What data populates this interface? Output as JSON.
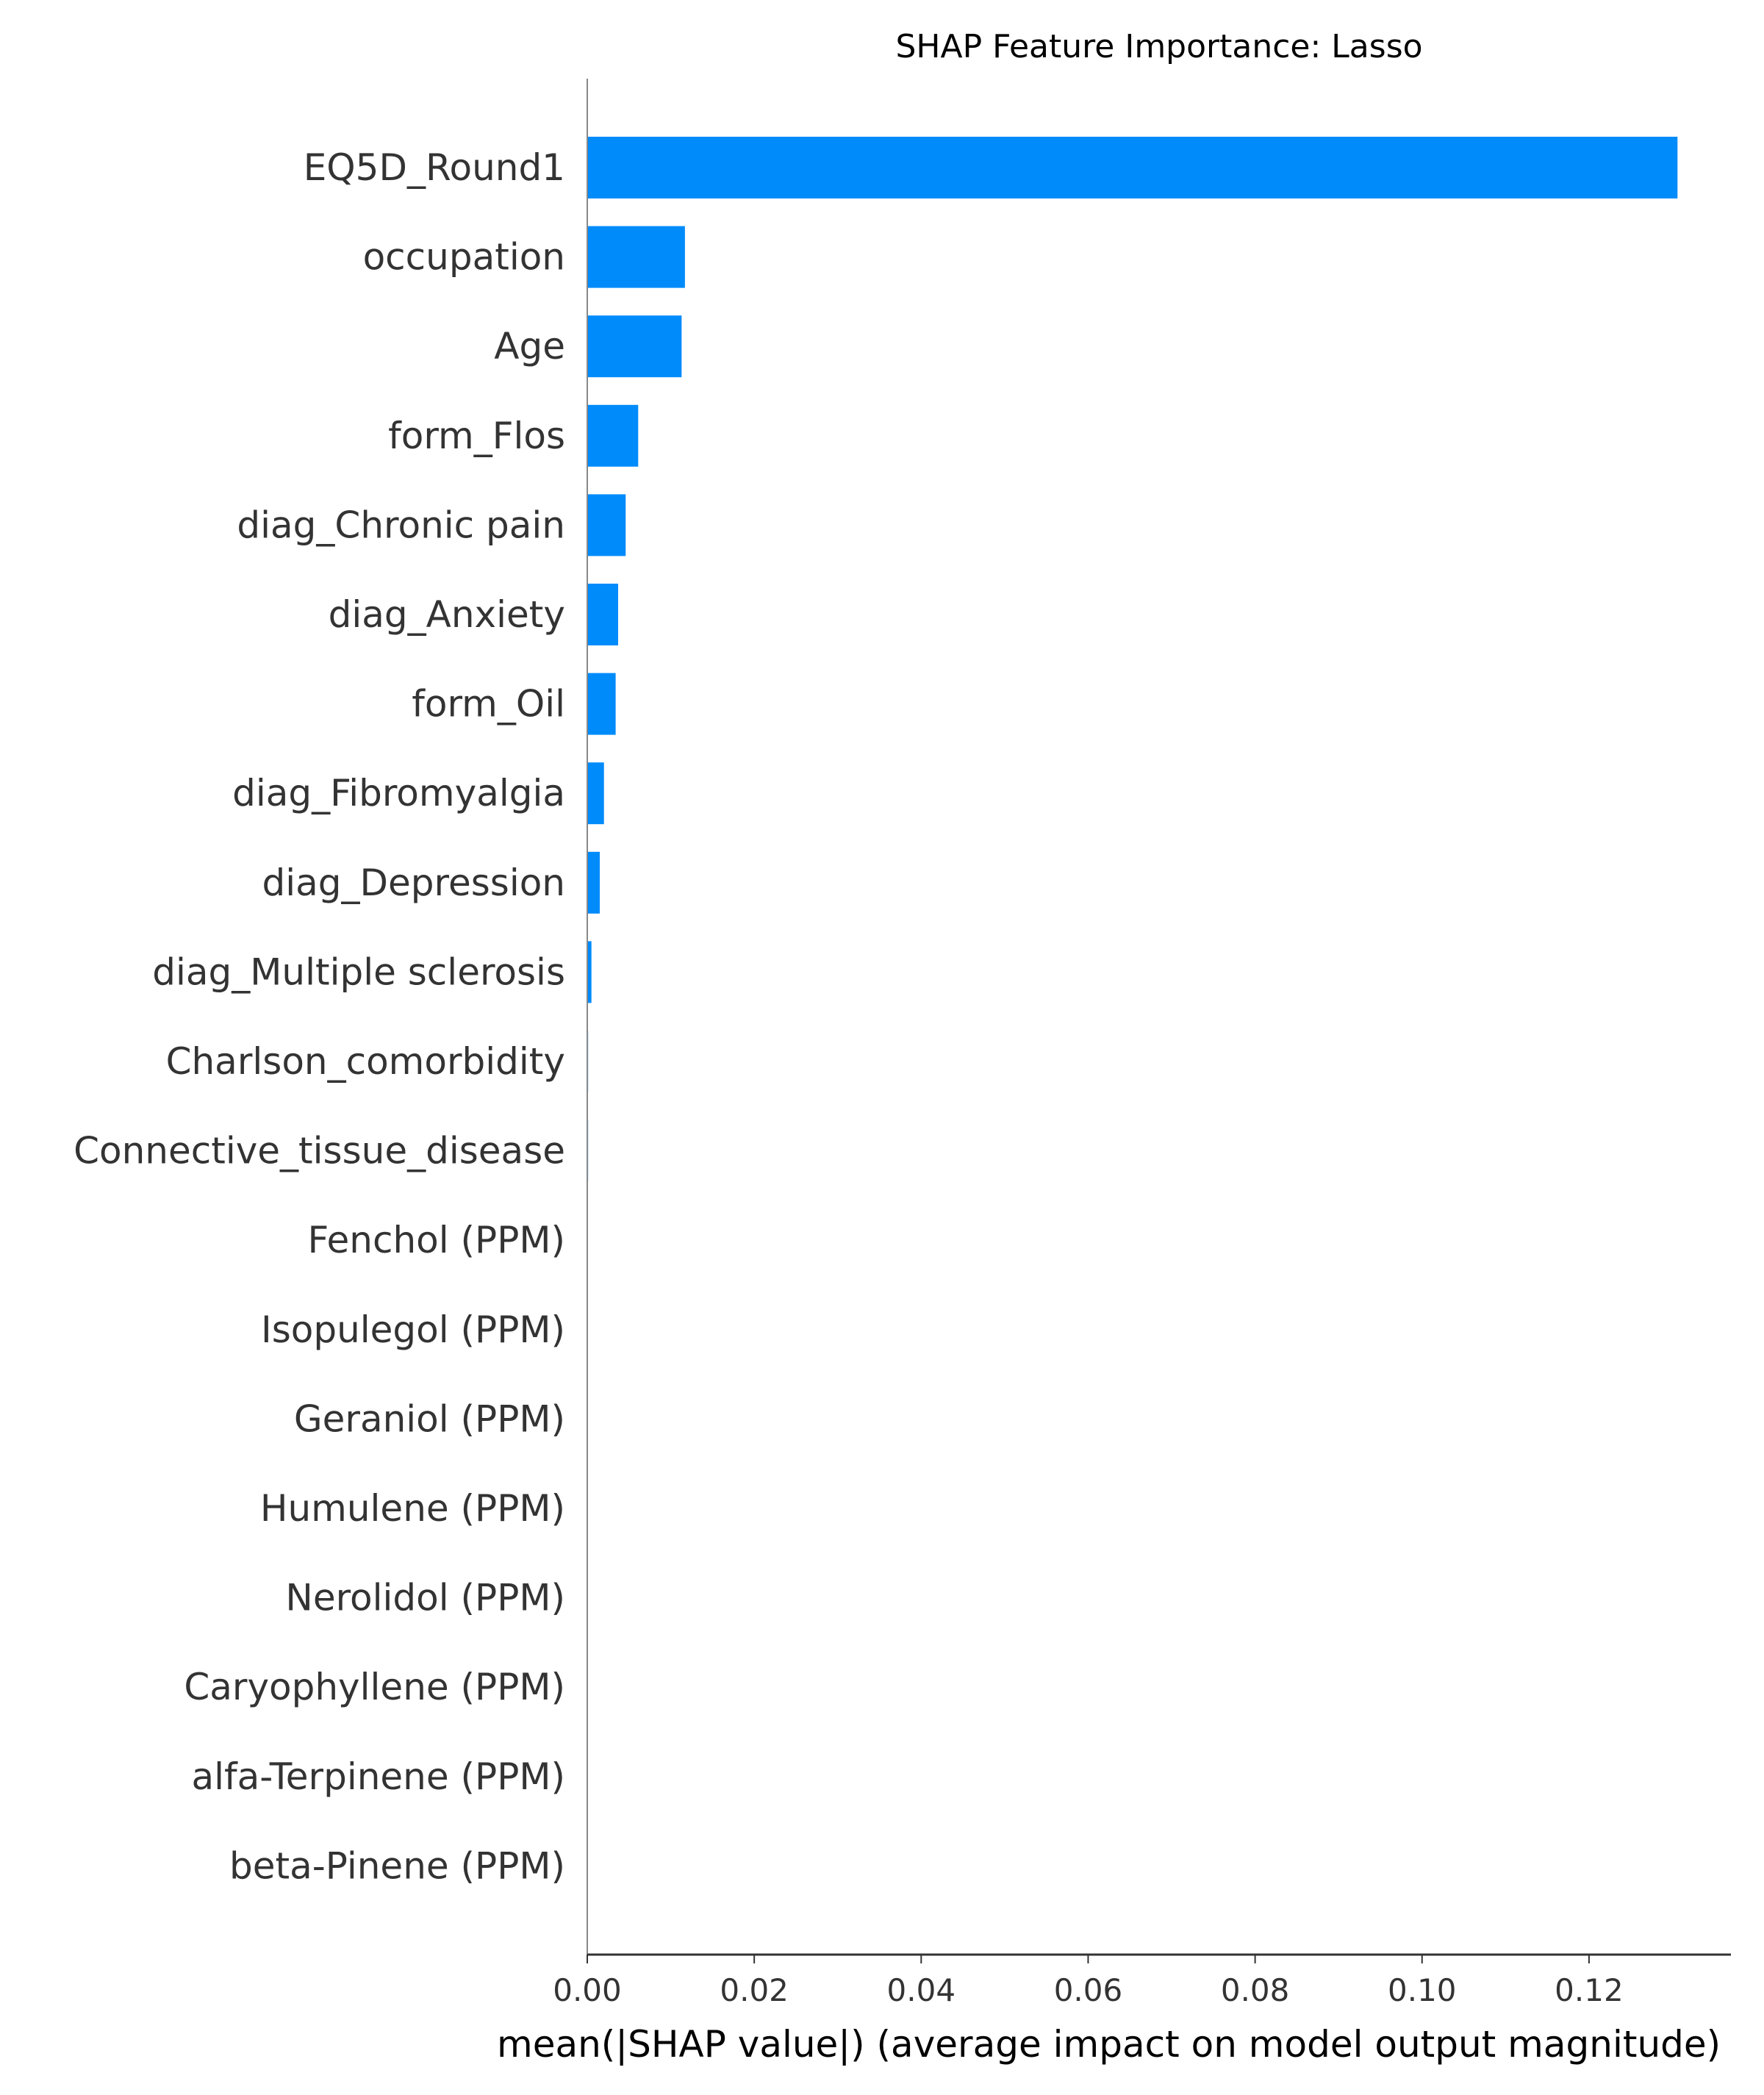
{
  "chart_data": {
    "type": "bar",
    "orientation": "horizontal",
    "title": "SHAP Feature Importance: Lasso",
    "xlabel": "mean(|SHAP value|) (average impact on model output magnitude)",
    "ylabel": "",
    "xlim": [
      0,
      0.137
    ],
    "xticks": [
      "0.00",
      "0.02",
      "0.04",
      "0.06",
      "0.08",
      "0.10",
      "0.12"
    ],
    "categories": [
      "EQ5D_Round1",
      "occupation",
      "Age",
      "form_Flos",
      "diag_Chronic pain",
      "diag_Anxiety",
      "form_Oil",
      "diag_Fibromyalgia",
      "diag_Depression",
      "diag_Multiple sclerosis",
      "Charlson_comorbidity",
      "Connective_tissue_disease",
      "Fenchol (PPM)",
      "Isopulegol (PPM)",
      "Geraniol (PPM)",
      "Humulene (PPM)",
      "Nerolidol (PPM)",
      "Caryophyllene (PPM)",
      "alfa-Terpinene (PPM)",
      "beta-Pinene (PPM)"
    ],
    "values": [
      0.1306,
      0.0117,
      0.0113,
      0.0061,
      0.0046,
      0.0037,
      0.0034,
      0.002,
      0.0015,
      0.0005,
      0.0001,
      0.0001,
      0,
      0,
      0,
      0,
      0,
      0,
      0,
      0
    ],
    "colors": {
      "bar": "#008bfb",
      "axis": "#333333",
      "text": "#333333"
    },
    "grid": false,
    "legend": "none"
  }
}
